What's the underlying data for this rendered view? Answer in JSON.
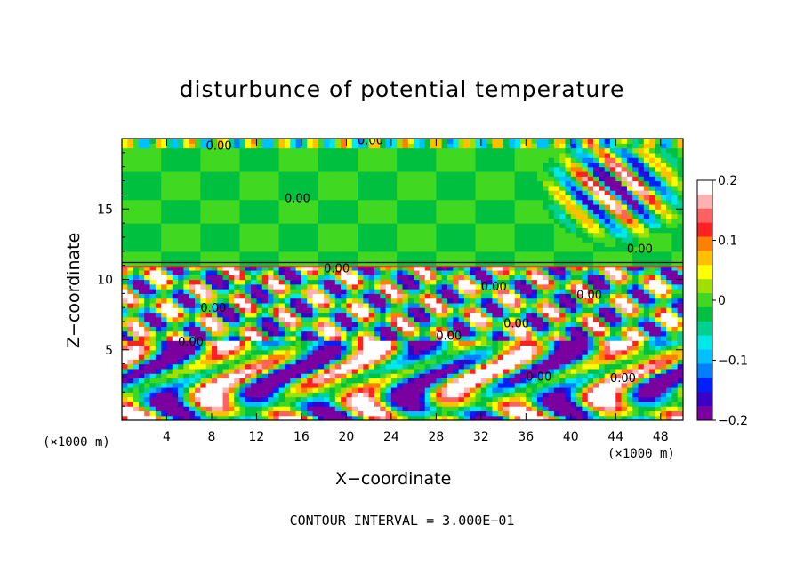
{
  "chart_data": {
    "type": "heatmap",
    "title": "disturbunce of potential temperature",
    "xlabel": "X−coordinate",
    "ylabel": "Z−coordinate",
    "x_unit_label_left": "(×1000 m)",
    "x_unit_label_right": "(×1000 m)",
    "xlim": [
      0,
      50
    ],
    "ylim": [
      0,
      20
    ],
    "x_ticks": [
      "4",
      "8",
      "12",
      "16",
      "20",
      "24",
      "28",
      "32",
      "36",
      "40",
      "44",
      "48"
    ],
    "y_ticks": [
      "5",
      "10",
      "15"
    ],
    "colorbar": {
      "range": [
        -0.2,
        0.2
      ],
      "tick_labels": [
        "0.2",
        "0.1",
        "0",
        "−0.1",
        "−0.2"
      ],
      "colors": [
        "#7a00a0",
        "#3a00c8",
        "#0020ff",
        "#0080ff",
        "#00c0ff",
        "#00e8e8",
        "#00d090",
        "#00c040",
        "#40d820",
        "#a0e000",
        "#ffff00",
        "#ffc000",
        "#ff8000",
        "#ff2020",
        "#ff6060",
        "#ffb0b0"
      ]
    },
    "contour_labels": [
      "0.00",
      "0.00",
      "0.00",
      "0.00",
      "0.00",
      "0.00",
      "0.00",
      "0.00",
      "0.00",
      "0.00",
      "0.00",
      "0.00",
      "0.00"
    ],
    "footnote": "CONTOUR INTERVAL = 3.000E−01"
  }
}
